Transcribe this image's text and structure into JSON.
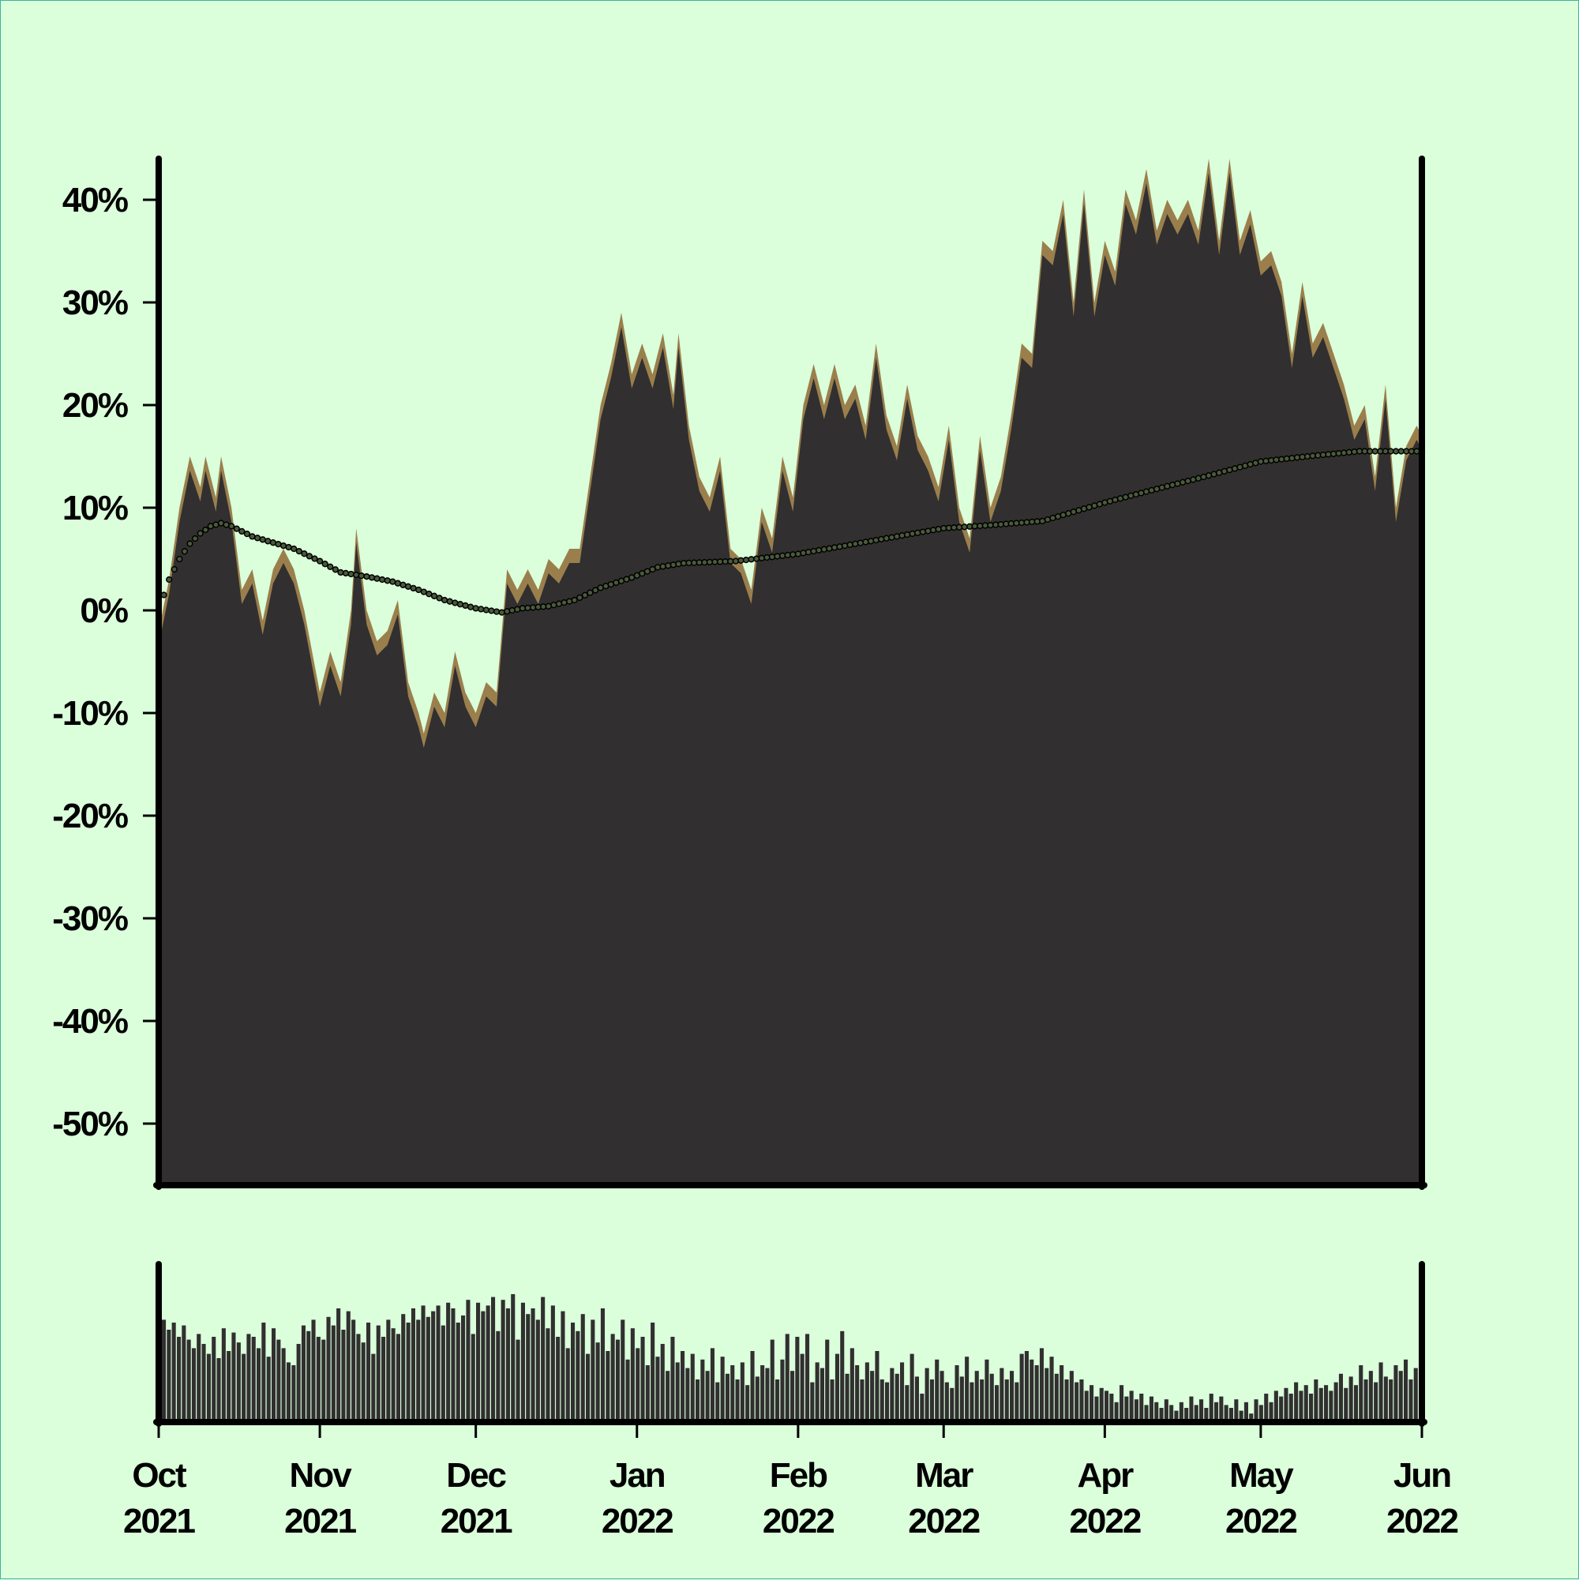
{
  "colors": {
    "background": "#dbffdb",
    "area_fill": "#312f30",
    "area_edge": "#9a7f4c",
    "moving_average_dot": "#4a5a3c",
    "volume_fill": "#312f30",
    "axis": "#000000"
  },
  "chart_data": {
    "type": "area",
    "title": "",
    "xlabel": "",
    "ylabel": "",
    "ylim": [
      -0.56,
      0.44
    ],
    "y_ticks": [
      {
        "value": 0.4,
        "label": "40%"
      },
      {
        "value": 0.3,
        "label": "30%"
      },
      {
        "value": 0.2,
        "label": "20%"
      },
      {
        "value": 0.1,
        "label": "10%"
      },
      {
        "value": 0.0,
        "label": "0%"
      },
      {
        "value": -0.1,
        "label": "-10%"
      },
      {
        "value": -0.2,
        "label": "-20%"
      },
      {
        "value": -0.3,
        "label": "-30%"
      },
      {
        "value": -0.4,
        "label": "-40%"
      },
      {
        "value": -0.5,
        "label": "-50%"
      }
    ],
    "x_range": [
      "2021-10-01",
      "2022-06-01"
    ],
    "x_ticks": [
      {
        "date": "2021-10-01",
        "month": "Oct",
        "year": "2021"
      },
      {
        "date": "2021-11-01",
        "month": "Nov",
        "year": "2021"
      },
      {
        "date": "2021-12-01",
        "month": "Dec",
        "year": "2021"
      },
      {
        "date": "2022-01-01",
        "month": "Jan",
        "year": "2022"
      },
      {
        "date": "2022-02-01",
        "month": "Feb",
        "year": "2022"
      },
      {
        "date": "2022-03-01",
        "month": "Mar",
        "year": "2022"
      },
      {
        "date": "2022-04-01",
        "month": "Apr",
        "year": "2022"
      },
      {
        "date": "2022-05-01",
        "month": "May",
        "year": "2022"
      },
      {
        "date": "2022-06-01",
        "month": "Jun",
        "year": "2022"
      }
    ],
    "series": [
      {
        "type": "area",
        "points": [
          [
            "2021-10-01",
            -0.02
          ],
          [
            "2021-10-03",
            0.03
          ],
          [
            "2021-10-05",
            0.1
          ],
          [
            "2021-10-07",
            0.15
          ],
          [
            "2021-10-09",
            0.12
          ],
          [
            "2021-10-10",
            0.15
          ],
          [
            "2021-10-12",
            0.11
          ],
          [
            "2021-10-13",
            0.15
          ],
          [
            "2021-10-15",
            0.1
          ],
          [
            "2021-10-17",
            0.02
          ],
          [
            "2021-10-19",
            0.04
          ],
          [
            "2021-10-21",
            -0.01
          ],
          [
            "2021-10-23",
            0.04
          ],
          [
            "2021-10-25",
            0.06
          ],
          [
            "2021-10-27",
            0.04
          ],
          [
            "2021-10-29",
            0.0
          ],
          [
            "2021-11-01",
            -0.08
          ],
          [
            "2021-11-03",
            -0.04
          ],
          [
            "2021-11-05",
            -0.07
          ],
          [
            "2021-11-07",
            0.0
          ],
          [
            "2021-11-08",
            0.08
          ],
          [
            "2021-11-10",
            0.0
          ],
          [
            "2021-11-12",
            -0.03
          ],
          [
            "2021-11-14",
            -0.02
          ],
          [
            "2021-11-16",
            0.01
          ],
          [
            "2021-11-18",
            -0.07
          ],
          [
            "2021-11-20",
            -0.1
          ],
          [
            "2021-11-21",
            -0.12
          ],
          [
            "2021-11-23",
            -0.08
          ],
          [
            "2021-11-25",
            -0.1
          ],
          [
            "2021-11-27",
            -0.04
          ],
          [
            "2021-11-29",
            -0.08
          ],
          [
            "2021-12-01",
            -0.1
          ],
          [
            "2021-12-03",
            -0.07
          ],
          [
            "2021-12-05",
            -0.08
          ],
          [
            "2021-12-07",
            0.04
          ],
          [
            "2021-12-09",
            0.02
          ],
          [
            "2021-12-11",
            0.04
          ],
          [
            "2021-12-13",
            0.02
          ],
          [
            "2021-12-15",
            0.05
          ],
          [
            "2021-12-17",
            0.04
          ],
          [
            "2021-12-19",
            0.06
          ],
          [
            "2021-12-21",
            0.06
          ],
          [
            "2021-12-23",
            0.13
          ],
          [
            "2021-12-25",
            0.2
          ],
          [
            "2021-12-27",
            0.24
          ],
          [
            "2021-12-29",
            0.29
          ],
          [
            "2021-12-31",
            0.23
          ],
          [
            "2022-01-02",
            0.26
          ],
          [
            "2022-01-04",
            0.23
          ],
          [
            "2022-01-06",
            0.27
          ],
          [
            "2022-01-08",
            0.21
          ],
          [
            "2022-01-09",
            0.27
          ],
          [
            "2022-01-11",
            0.18
          ],
          [
            "2022-01-13",
            0.13
          ],
          [
            "2022-01-15",
            0.11
          ],
          [
            "2022-01-17",
            0.15
          ],
          [
            "2022-01-19",
            0.06
          ],
          [
            "2022-01-21",
            0.05
          ],
          [
            "2022-01-23",
            0.02
          ],
          [
            "2022-01-25",
            0.1
          ],
          [
            "2022-01-27",
            0.07
          ],
          [
            "2022-01-29",
            0.15
          ],
          [
            "2022-01-31",
            0.11
          ],
          [
            "2022-02-02",
            0.2
          ],
          [
            "2022-02-04",
            0.24
          ],
          [
            "2022-02-06",
            0.2
          ],
          [
            "2022-02-08",
            0.24
          ],
          [
            "2022-02-10",
            0.2
          ],
          [
            "2022-02-12",
            0.22
          ],
          [
            "2022-02-14",
            0.18
          ],
          [
            "2022-02-16",
            0.26
          ],
          [
            "2022-02-18",
            0.19
          ],
          [
            "2022-02-20",
            0.16
          ],
          [
            "2022-02-22",
            0.22
          ],
          [
            "2022-02-24",
            0.17
          ],
          [
            "2022-02-26",
            0.15
          ],
          [
            "2022-02-28",
            0.12
          ],
          [
            "2022-03-02",
            0.18
          ],
          [
            "2022-03-04",
            0.1
          ],
          [
            "2022-03-06",
            0.07
          ],
          [
            "2022-03-08",
            0.17
          ],
          [
            "2022-03-10",
            0.1
          ],
          [
            "2022-03-12",
            0.13
          ],
          [
            "2022-03-14",
            0.19
          ],
          [
            "2022-03-16",
            0.26
          ],
          [
            "2022-03-18",
            0.25
          ],
          [
            "2022-03-20",
            0.36
          ],
          [
            "2022-03-22",
            0.35
          ],
          [
            "2022-03-24",
            0.4
          ],
          [
            "2022-03-26",
            0.3
          ],
          [
            "2022-03-28",
            0.41
          ],
          [
            "2022-03-30",
            0.3
          ],
          [
            "2022-04-01",
            0.36
          ],
          [
            "2022-04-03",
            0.33
          ],
          [
            "2022-04-05",
            0.41
          ],
          [
            "2022-04-07",
            0.38
          ],
          [
            "2022-04-09",
            0.43
          ],
          [
            "2022-04-11",
            0.37
          ],
          [
            "2022-04-13",
            0.4
          ],
          [
            "2022-04-15",
            0.38
          ],
          [
            "2022-04-17",
            0.4
          ],
          [
            "2022-04-19",
            0.37
          ],
          [
            "2022-04-21",
            0.44
          ],
          [
            "2022-04-23",
            0.36
          ],
          [
            "2022-04-25",
            0.44
          ],
          [
            "2022-04-27",
            0.36
          ],
          [
            "2022-04-29",
            0.39
          ],
          [
            "2022-05-01",
            0.34
          ],
          [
            "2022-05-03",
            0.35
          ],
          [
            "2022-05-05",
            0.32
          ],
          [
            "2022-05-07",
            0.25
          ],
          [
            "2022-05-09",
            0.32
          ],
          [
            "2022-05-11",
            0.26
          ],
          [
            "2022-05-13",
            0.28
          ],
          [
            "2022-05-15",
            0.25
          ],
          [
            "2022-05-17",
            0.22
          ],
          [
            "2022-05-19",
            0.18
          ],
          [
            "2022-05-21",
            0.2
          ],
          [
            "2022-05-23",
            0.13
          ],
          [
            "2022-05-25",
            0.22
          ],
          [
            "2022-05-27",
            0.1
          ],
          [
            "2022-05-29",
            0.16
          ],
          [
            "2022-05-31",
            0.18
          ],
          [
            "2022-06-01",
            0.17
          ]
        ]
      },
      {
        "type": "line-dots",
        "points": [
          [
            "2021-10-01",
            0.0
          ],
          [
            "2021-10-03",
            0.03
          ],
          [
            "2021-10-05",
            0.05
          ],
          [
            "2021-10-07",
            0.065
          ],
          [
            "2021-10-09",
            0.075
          ],
          [
            "2021-10-11",
            0.082
          ],
          [
            "2021-10-13",
            0.085
          ],
          [
            "2021-10-15",
            0.082
          ],
          [
            "2021-10-19",
            0.072
          ],
          [
            "2021-10-23",
            0.066
          ],
          [
            "2021-10-27",
            0.06
          ],
          [
            "2021-11-01",
            0.048
          ],
          [
            "2021-11-05",
            0.037
          ],
          [
            "2021-11-10",
            0.033
          ],
          [
            "2021-11-15",
            0.028
          ],
          [
            "2021-11-20",
            0.02
          ],
          [
            "2021-11-25",
            0.01
          ],
          [
            "2021-12-01",
            0.002
          ],
          [
            "2021-12-06",
            -0.002
          ],
          [
            "2021-12-10",
            0.002
          ],
          [
            "2021-12-15",
            0.004
          ],
          [
            "2021-12-20",
            0.01
          ],
          [
            "2021-12-25",
            0.022
          ],
          [
            "2021-12-31",
            0.032
          ],
          [
            "2022-01-05",
            0.042
          ],
          [
            "2022-01-10",
            0.046
          ],
          [
            "2022-01-20",
            0.048
          ],
          [
            "2022-02-01",
            0.055
          ],
          [
            "2022-02-10",
            0.063
          ],
          [
            "2022-02-20",
            0.072
          ],
          [
            "2022-03-01",
            0.08
          ],
          [
            "2022-03-10",
            0.083
          ],
          [
            "2022-03-20",
            0.087
          ],
          [
            "2022-04-01",
            0.105
          ],
          [
            "2022-04-10",
            0.117
          ],
          [
            "2022-04-20",
            0.13
          ],
          [
            "2022-05-01",
            0.145
          ],
          [
            "2022-05-10",
            0.15
          ],
          [
            "2022-05-20",
            0.155
          ],
          [
            "2022-06-01",
            0.155
          ]
        ]
      },
      {
        "type": "volume-bars",
        "ylim": [
          0,
          1
        ],
        "values": [
          0.72,
          0.65,
          0.7,
          0.6,
          0.68,
          0.58,
          0.52,
          0.62,
          0.55,
          0.48,
          0.6,
          0.45,
          0.66,
          0.5,
          0.63,
          0.56,
          0.48,
          0.62,
          0.6,
          0.52,
          0.7,
          0.46,
          0.66,
          0.58,
          0.52,
          0.42,
          0.4,
          0.55,
          0.68,
          0.64,
          0.72,
          0.6,
          0.58,
          0.74,
          0.68,
          0.8,
          0.65,
          0.78,
          0.72,
          0.62,
          0.56,
          0.7,
          0.48,
          0.68,
          0.6,
          0.72,
          0.66,
          0.62,
          0.76,
          0.7,
          0.8,
          0.72,
          0.82,
          0.74,
          0.78,
          0.82,
          0.68,
          0.84,
          0.8,
          0.7,
          0.75,
          0.86,
          0.62,
          0.84,
          0.78,
          0.82,
          0.88,
          0.64,
          0.86,
          0.8,
          0.9,
          0.58,
          0.84,
          0.76,
          0.8,
          0.72,
          0.88,
          0.66,
          0.82,
          0.6,
          0.78,
          0.52,
          0.7,
          0.64,
          0.76,
          0.48,
          0.72,
          0.56,
          0.8,
          0.5,
          0.62,
          0.58,
          0.72,
          0.44,
          0.66,
          0.52,
          0.6,
          0.4,
          0.7,
          0.46,
          0.55,
          0.36,
          0.6,
          0.42,
          0.5,
          0.38,
          0.48,
          0.3,
          0.44,
          0.36,
          0.52,
          0.28,
          0.46,
          0.34,
          0.4,
          0.3,
          0.42,
          0.26,
          0.5,
          0.32,
          0.4,
          0.38,
          0.58,
          0.3,
          0.44,
          0.62,
          0.36,
          0.6,
          0.48,
          0.62,
          0.28,
          0.42,
          0.38,
          0.58,
          0.3,
          0.48,
          0.64,
          0.34,
          0.52,
          0.4,
          0.3,
          0.42,
          0.36,
          0.5,
          0.3,
          0.28,
          0.38,
          0.34,
          0.42,
          0.26,
          0.48,
          0.32,
          0.2,
          0.38,
          0.3,
          0.44,
          0.36,
          0.28,
          0.24,
          0.4,
          0.32,
          0.46,
          0.28,
          0.36,
          0.3,
          0.44,
          0.34,
          0.26,
          0.38,
          0.3,
          0.36,
          0.28,
          0.48,
          0.5,
          0.44,
          0.4,
          0.52,
          0.38,
          0.46,
          0.34,
          0.4,
          0.3,
          0.36,
          0.28,
          0.3,
          0.22,
          0.26,
          0.18,
          0.24,
          0.22,
          0.2,
          0.14,
          0.26,
          0.18,
          0.22,
          0.16,
          0.2,
          0.12,
          0.18,
          0.14,
          0.1,
          0.16,
          0.12,
          0.08,
          0.14,
          0.1,
          0.18,
          0.12,
          0.16,
          0.1,
          0.2,
          0.14,
          0.18,
          0.12,
          0.1,
          0.16,
          0.08,
          0.14,
          0.06,
          0.16,
          0.12,
          0.2,
          0.14,
          0.22,
          0.18,
          0.24,
          0.2,
          0.28,
          0.22,
          0.26,
          0.2,
          0.3,
          0.24,
          0.26,
          0.22,
          0.28,
          0.34,
          0.24,
          0.32,
          0.26,
          0.4,
          0.3,
          0.36,
          0.28,
          0.42,
          0.32,
          0.3,
          0.4,
          0.36,
          0.44,
          0.3,
          0.38
        ]
      }
    ]
  }
}
